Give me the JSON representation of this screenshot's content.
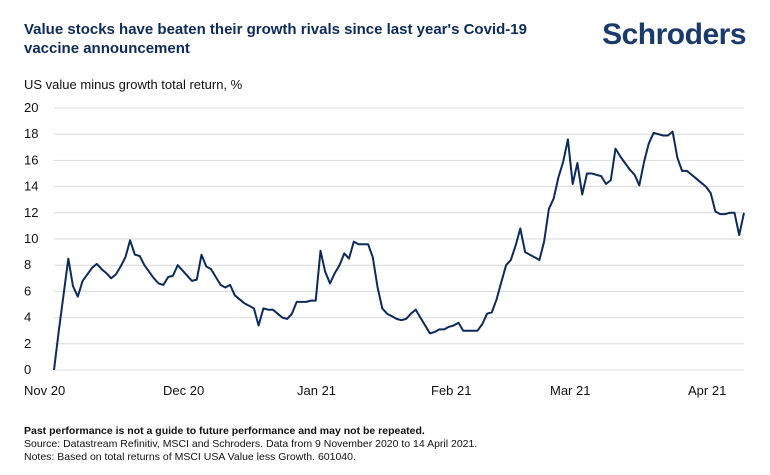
{
  "header": {
    "title": "Value stocks have beaten their growth rivals since last year's Covid-19 vaccine announcement",
    "logo_text": "Schroders",
    "y_axis_label": "US value minus growth total return, %"
  },
  "footer": {
    "disclaimer": "Past performance is not a guide to future performance and may not be repeated.",
    "source": "Source: Datastream Refinitiv, MSCI and Schroders. Data from 9 November 2020 to 14 April 2021.",
    "notes": "Notes: Based on total returns of MSCI USA Value less Growth. 601040."
  },
  "colors": {
    "line": "#0d2b5a",
    "title": "#0d2b5a",
    "logo": "#1a3a6b"
  },
  "chart_data": {
    "type": "line",
    "title": "Value stocks have beaten their growth rivals since last year's Covid-19 vaccine announcement",
    "ylabel": "US value minus growth total return, %",
    "xlabel": "",
    "ylim": [
      0,
      20
    ],
    "yticks": [
      0,
      2,
      4,
      6,
      8,
      10,
      12,
      14,
      16,
      18,
      20
    ],
    "xticks": [
      "Nov 20",
      "Dec 20",
      "Jan 21",
      "Feb 21",
      "Mar 21",
      "Apr 21"
    ],
    "grid": "horizontal",
    "series": [
      {
        "values": [
          0.0,
          3.0,
          5.7,
          8.5,
          6.4,
          5.6,
          6.8,
          7.3,
          7.8,
          8.1,
          7.7,
          7.4,
          7.0,
          7.3,
          7.9,
          8.6,
          9.9,
          8.8,
          8.7,
          8.0,
          7.5,
          7.0,
          6.6,
          6.5,
          7.1,
          7.2,
          8.0,
          7.6,
          7.2,
          6.8,
          6.9,
          8.8,
          7.9,
          7.7,
          7.1,
          6.5,
          6.3,
          6.5,
          5.7,
          5.4,
          5.1,
          4.9,
          4.7,
          3.4,
          4.7,
          4.6,
          4.6,
          4.3,
          4.0,
          3.9,
          4.3,
          5.2,
          5.2,
          5.2,
          5.3,
          5.3,
          9.1,
          7.5,
          6.6,
          7.4,
          8.0,
          8.9,
          8.5,
          9.8,
          9.6,
          9.6,
          9.6,
          8.6,
          6.3,
          4.7,
          4.3,
          4.1,
          3.9,
          3.8,
          3.9,
          4.3,
          4.6,
          4.0,
          3.4,
          2.8,
          2.9,
          3.1,
          3.1,
          3.3,
          3.4,
          3.6,
          3.0,
          3.0,
          3.0,
          3.0,
          3.5,
          4.3,
          4.4,
          5.4,
          6.7,
          8.0,
          8.4,
          9.5,
          10.8,
          9.0,
          8.8,
          8.6,
          8.4,
          9.8,
          12.3,
          13.1,
          14.7,
          15.9,
          17.6,
          14.2,
          15.8,
          13.4,
          15.0,
          15.0,
          14.9,
          14.8,
          14.2,
          14.5,
          16.9,
          16.3,
          15.8,
          15.3,
          14.9,
          14.1,
          15.9,
          17.3,
          18.1,
          18.0,
          17.9,
          17.9,
          18.2,
          16.2,
          15.2,
          15.2,
          14.9,
          14.6,
          14.3,
          14.0,
          13.5,
          12.1,
          11.9,
          11.9,
          12.0,
          12.0,
          10.3,
          12.0
        ]
      }
    ]
  }
}
